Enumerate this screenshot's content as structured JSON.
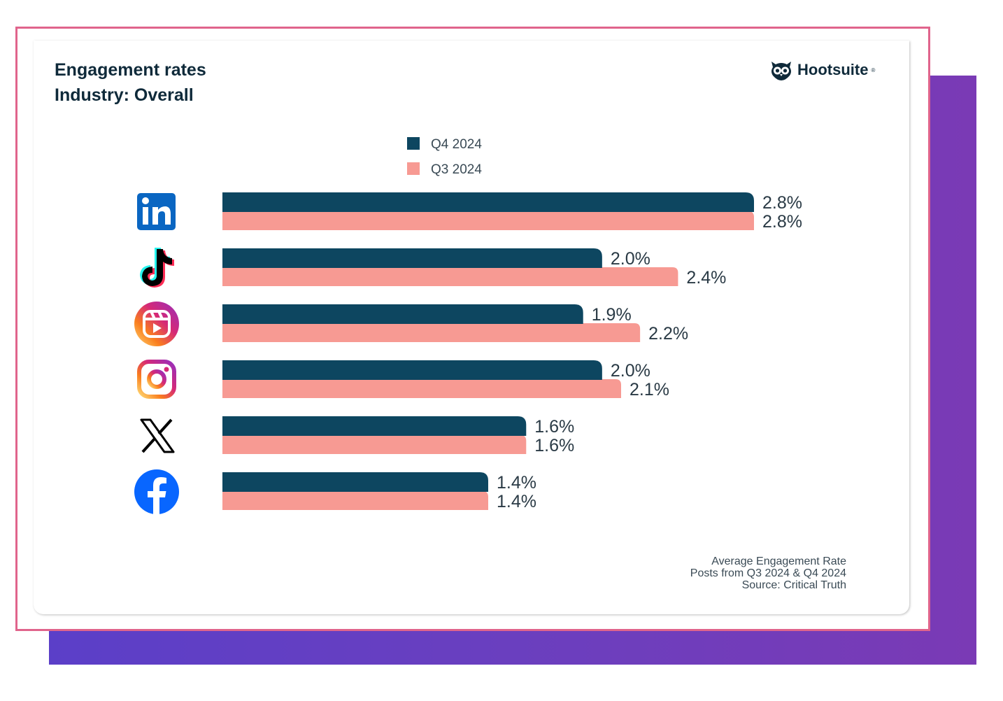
{
  "header": {
    "title_line1": "Engagement rates",
    "title_line2": "Industry: Overall",
    "brand": "Hootsuite",
    "brand_mark": "®"
  },
  "footer": {
    "line1": "Average Engagement Rate",
    "line2": "Posts from Q3 2024 & Q4 2024",
    "line3": "Source: Critical Truth"
  },
  "colors": {
    "q4": "#0d4660",
    "q3": "#f79a93",
    "frame": "#e0648c",
    "backdrop": "#6a3fbf"
  },
  "chart_data": {
    "type": "bar",
    "orientation": "horizontal",
    "categories": [
      "LinkedIn",
      "TikTok",
      "Instagram Reels",
      "Instagram",
      "X",
      "Facebook"
    ],
    "category_icons": [
      "linkedin-icon",
      "tiktok-icon",
      "instagram-reels-icon",
      "instagram-icon",
      "x-icon",
      "facebook-icon"
    ],
    "series": [
      {
        "name": "Q4 2024",
        "values": [
          2.8,
          2.0,
          1.9,
          2.0,
          1.6,
          1.4
        ],
        "labels": [
          "2.8%",
          "2.0%",
          "1.9%",
          "2.0%",
          "1.6%",
          "1.4%"
        ]
      },
      {
        "name": "Q3 2024",
        "values": [
          2.8,
          2.4,
          2.2,
          2.1,
          1.6,
          1.4
        ],
        "labels": [
          "2.8%",
          "2.4%",
          "2.2%",
          "2.1%",
          "1.6%",
          "1.4%"
        ]
      }
    ],
    "unit": "%",
    "xlim": [
      0,
      2.8
    ],
    "grid": false,
    "legend": "top-center"
  }
}
